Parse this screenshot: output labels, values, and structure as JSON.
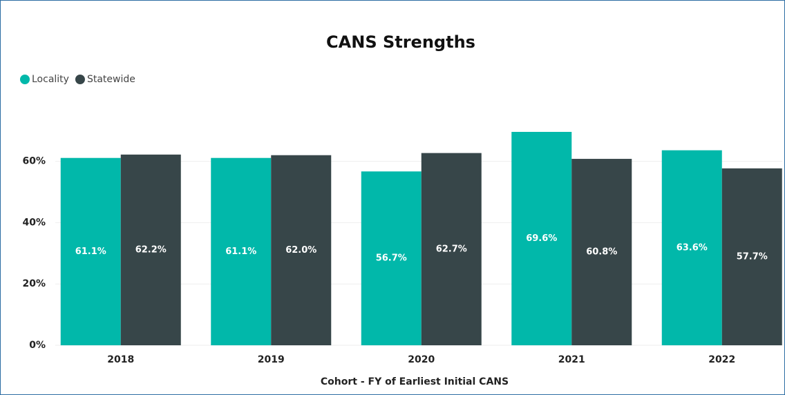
{
  "chart_data": {
    "type": "bar",
    "title": "CANS Strengths",
    "x_label": "Cohort - FY of Earliest Initial CANS",
    "categories": [
      "2018",
      "2019",
      "2020",
      "2021",
      "2022"
    ],
    "series": [
      {
        "name": "Locality",
        "color": "#01b8aa",
        "values": [
          61.1,
          61.1,
          56.7,
          69.6,
          63.6
        ],
        "value_labels": [
          "61.1%",
          "61.1%",
          "56.7%",
          "69.6%",
          "63.6%"
        ]
      },
      {
        "name": "Statewide",
        "color": "#374649",
        "values": [
          62.2,
          62.0,
          62.7,
          60.8,
          57.7
        ],
        "value_labels": [
          "62.2%",
          "62.0%",
          "62.7%",
          "60.8%",
          "57.7%"
        ]
      }
    ],
    "ylim": [
      0,
      75
    ],
    "yticks": [
      {
        "value": 0,
        "label": "0%"
      },
      {
        "value": 20,
        "label": "20%"
      },
      {
        "value": 40,
        "label": "40%"
      },
      {
        "value": 60,
        "label": "60%"
      }
    ],
    "grid": true,
    "legend": "top-left"
  }
}
